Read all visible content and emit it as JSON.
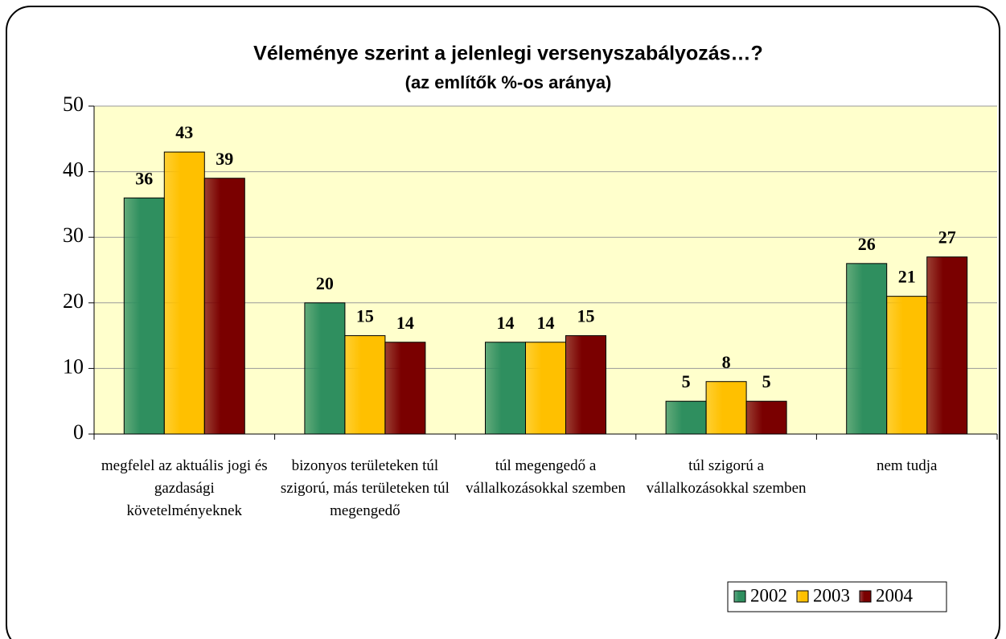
{
  "chart_data": {
    "type": "bar",
    "title": "Véleménye szerint a jelenlegi versenyszabályozás…?",
    "subtitle": "(az említők %-os aránya)",
    "categories": [
      "megfelel az aktuális jogi és gazdasági követelményeknek",
      "bizonyos területeken túl szigorú, más területeken túl megengedő",
      "túl megengedő a vállalkozásokkal szemben",
      "túl szigorú a vállalkozásokkal szemben",
      "nem tudja"
    ],
    "series": [
      {
        "name": "2002",
        "color": "#2f8f5f",
        "values": [
          36,
          20,
          14,
          5,
          26
        ]
      },
      {
        "name": "2003",
        "color": "#ffc000",
        "values": [
          43,
          15,
          14,
          8,
          21
        ]
      },
      {
        "name": "2004",
        "color": "#7a0000",
        "values": [
          39,
          14,
          15,
          5,
          27
        ]
      }
    ],
    "ylim": [
      0,
      50
    ],
    "yticks": [
      0,
      10,
      20,
      30,
      40,
      50
    ],
    "grid": true,
    "legend": "bottom-right"
  }
}
